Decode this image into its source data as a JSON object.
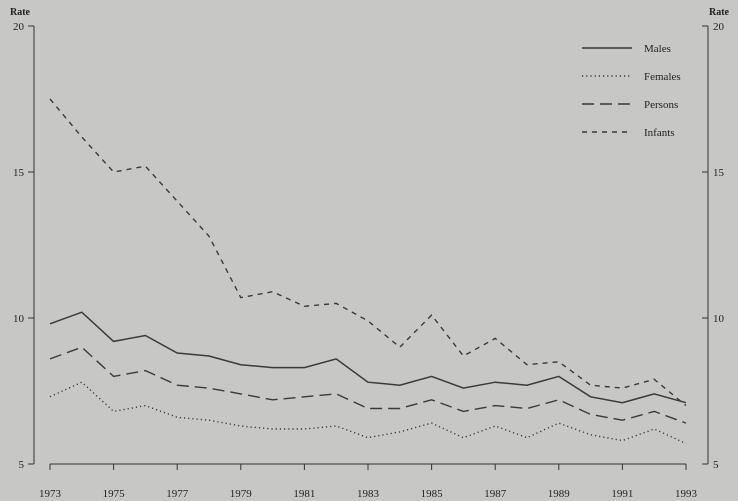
{
  "chart_data": {
    "type": "line",
    "ylabel_left": "Rate",
    "ylabel_right": "Rate",
    "ylim": [
      5,
      20
    ],
    "yticks": [
      5,
      10,
      15,
      20
    ],
    "x": [
      1973,
      1974,
      1975,
      1976,
      1977,
      1978,
      1979,
      1980,
      1981,
      1982,
      1983,
      1984,
      1985,
      1986,
      1987,
      1988,
      1989,
      1990,
      1991,
      1992,
      1993
    ],
    "xticks": [
      1973,
      1975,
      1977,
      1979,
      1981,
      1983,
      1985,
      1987,
      1989,
      1991,
      1993
    ],
    "legend_position": "top-right",
    "grid": false,
    "series": [
      {
        "name": "Males",
        "style": "solid",
        "values": [
          9.8,
          10.2,
          9.2,
          9.4,
          8.8,
          8.7,
          8.4,
          8.3,
          8.3,
          8.6,
          7.8,
          7.7,
          8.0,
          7.6,
          7.8,
          7.7,
          8.0,
          7.3,
          7.1,
          7.4,
          7.1
        ]
      },
      {
        "name": "Females",
        "style": "dotted",
        "values": [
          7.3,
          7.8,
          6.8,
          7.0,
          6.6,
          6.5,
          6.3,
          6.2,
          6.2,
          6.3,
          5.9,
          6.1,
          6.4,
          5.9,
          6.3,
          5.9,
          6.4,
          6.0,
          5.8,
          6.2,
          5.7
        ]
      },
      {
        "name": "Persons",
        "style": "dashed",
        "values": [
          8.6,
          9.0,
          8.0,
          8.2,
          7.7,
          7.6,
          7.4,
          7.2,
          7.3,
          7.4,
          6.9,
          6.9,
          7.2,
          6.8,
          7.0,
          6.9,
          7.2,
          6.7,
          6.5,
          6.8,
          6.4
        ]
      },
      {
        "name": "Infants",
        "style": "short-dashed",
        "values": [
          17.5,
          16.2,
          15.0,
          15.2,
          14.0,
          12.8,
          10.7,
          10.9,
          10.4,
          10.5,
          9.9,
          9.0,
          10.1,
          8.7,
          9.3,
          8.4,
          8.5,
          7.7,
          7.6,
          7.9,
          7.0
        ]
      }
    ]
  }
}
